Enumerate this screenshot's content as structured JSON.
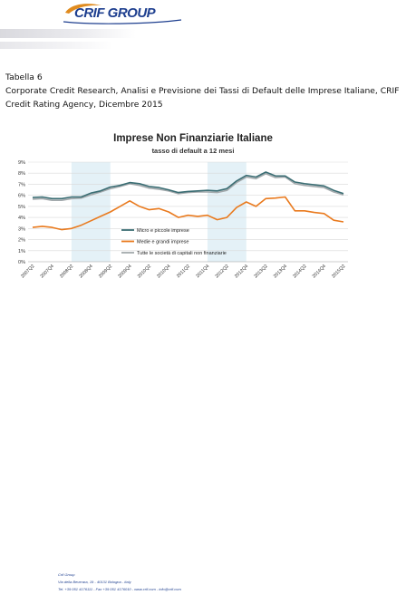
{
  "header": {
    "logo_text": "CRIF GROUP",
    "logo_color": "#1e3f8f"
  },
  "caption": {
    "label": "Tabella 6",
    "line1": "Corporate Credit Research, Analisi e Previsione dei Tassi di Default delle Imprese Italiane, CRIF",
    "line2": "Credit Rating Agency, Dicembre 2015"
  },
  "chart_data": {
    "type": "line",
    "title": "Imprese Non Finanziarie Italiane",
    "subtitle": "tasso di default a 12 mesi",
    "x": [
      "2007Q2",
      "2007Q3",
      "2007Q4",
      "2008Q1",
      "2008Q2",
      "2008Q3",
      "2008Q4",
      "2009Q1",
      "2009Q2",
      "2009Q3",
      "2009Q4",
      "2010Q1",
      "2010Q2",
      "2010Q3",
      "2010Q4",
      "2011Q1",
      "2011Q2",
      "2011Q3",
      "2011Q4",
      "2012Q1",
      "2012Q2",
      "2012Q3",
      "2012Q4",
      "2013Q1",
      "2013Q2",
      "2013Q3",
      "2013Q4",
      "2014Q1",
      "2014Q2",
      "2014Q3",
      "2014Q4",
      "2015Q1",
      "2015Q2"
    ],
    "x_tick_labels": [
      "2007Q2",
      "2007Q4",
      "2008Q2",
      "2008Q4",
      "2009Q2",
      "2009Q4",
      "2010Q2",
      "2010Q4",
      "2011Q2",
      "2011Q4",
      "2012Q2",
      "2012Q4",
      "2013Q2",
      "2013Q4",
      "2014Q2",
      "2014Q4",
      "2015Q2"
    ],
    "y_ticks": [
      "0%",
      "1%",
      "2%",
      "3%",
      "4%",
      "5%",
      "6%",
      "7%",
      "8%",
      "9%"
    ],
    "ylim": [
      0,
      9
    ],
    "grid": true,
    "shaded_periods": [
      [
        "2008Q2",
        "2009Q2"
      ],
      [
        "2011Q4",
        "2012Q4"
      ]
    ],
    "legend_position": "bottom-center",
    "series": [
      {
        "name": "Micro e piccole imprese",
        "color": "#3a6d73",
        "values": [
          5.8,
          5.85,
          5.7,
          5.7,
          5.85,
          5.85,
          6.2,
          6.4,
          6.75,
          6.9,
          7.15,
          7.05,
          6.8,
          6.7,
          6.5,
          6.25,
          6.35,
          6.4,
          6.45,
          6.4,
          6.6,
          7.3,
          7.8,
          7.65,
          8.1,
          7.75,
          7.75,
          7.2,
          7.05,
          6.95,
          6.85,
          6.45,
          6.15
        ]
      },
      {
        "name": "Medie e grandi imprese",
        "color": "#e97a1e",
        "values": [
          3.1,
          3.2,
          3.1,
          2.9,
          3.0,
          3.3,
          3.7,
          4.1,
          4.5,
          5.0,
          5.5,
          5.0,
          4.7,
          4.8,
          4.5,
          4.0,
          4.2,
          4.1,
          4.2,
          3.8,
          4.0,
          4.9,
          5.4,
          5.0,
          5.7,
          5.75,
          5.85,
          4.6,
          4.6,
          4.45,
          4.35,
          3.75,
          3.6
        ]
      },
      {
        "name": "Tutte le società di capitali non finanziarie",
        "color": "#a3a9ac",
        "values": [
          5.65,
          5.7,
          5.55,
          5.55,
          5.7,
          5.75,
          6.05,
          6.3,
          6.6,
          6.8,
          7.05,
          6.9,
          6.65,
          6.55,
          6.4,
          6.15,
          6.25,
          6.3,
          6.3,
          6.25,
          6.45,
          7.15,
          7.65,
          7.5,
          7.95,
          7.6,
          7.65,
          7.05,
          6.9,
          6.8,
          6.7,
          6.3,
          6.05
        ]
      }
    ]
  },
  "footer": {
    "line1": "Crif Group",
    "line2": "Via della Beverara, 19 - 40131 Bologna - Italy",
    "line3": "Tel. +39 051 4176111 - Fax +39 051 4176010 - www.crif.com - info@crif.com"
  }
}
